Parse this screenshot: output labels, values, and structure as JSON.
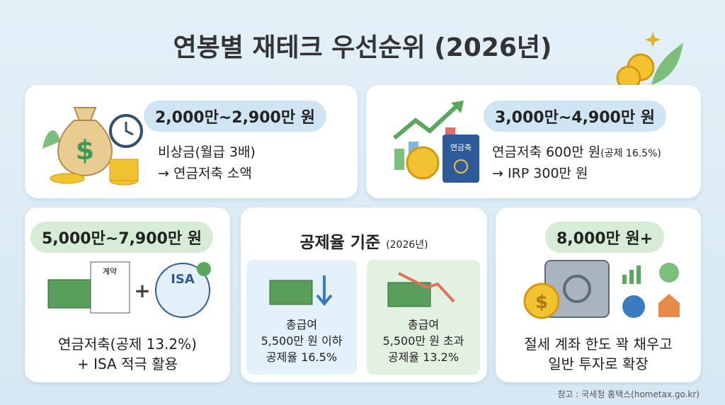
{
  "title": "연봉별 재테크 우선순위 (2026년)",
  "cards": [
    {
      "badge": "2,000만~2,900만 원",
      "lines": [
        "비상금(월급 3배)",
        "→ 연금저축 소액"
      ]
    },
    {
      "badge": "3,000만~4,900만 원",
      "lines": [
        "연금저축 600만 원",
        "→ IRP 300만 원"
      ],
      "note": "(공제 16.5%)",
      "icon_label": "연금축"
    },
    {
      "badge": "5,000만~7,900만 원",
      "lines": [
        "연금저축(공제 13.2%)",
        "+ ISA 적극 활용"
      ],
      "icon_labels": [
        "계약",
        "ISA"
      ]
    },
    {
      "title": "공제율 기준",
      "note": "(2026년)",
      "boxes": [
        {
          "lines": [
            "총급여",
            "5,500만 원 이하",
            "공제율 16.5%"
          ]
        },
        {
          "lines": [
            "총급여",
            "5,500만 원 초과",
            "공제율 13.2%"
          ]
        }
      ]
    },
    {
      "badge": "8,000만 원+",
      "lines": [
        "절세 계좌 한도 꽉 채우고",
        "일반 투자로 확장"
      ]
    }
  ],
  "footer": "참고 : 국세청 홈택스(hometax.go.kr)"
}
